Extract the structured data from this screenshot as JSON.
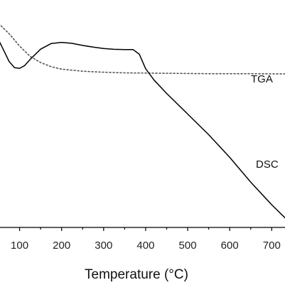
{
  "chart_data": {
    "type": "line",
    "title": "",
    "xlabel": "Temperature (°C)",
    "ylabel": "",
    "xlim": [
      50,
      735
    ],
    "ylim": [
      0,
      100
    ],
    "grid": false,
    "x_ticks": [
      100,
      200,
      300,
      400,
      500,
      600,
      700
    ],
    "x_tick_labels": [
      "100",
      "200",
      "300",
      "400",
      "500",
      "600",
      "700"
    ],
    "series": [
      {
        "name": "TGA",
        "style": "dotted",
        "color": "#555555",
        "x": [
          50,
          75,
          100,
          125,
          150,
          175,
          200,
          250,
          300,
          350,
          400,
          450,
          500,
          550,
          600,
          650,
          700,
          735
        ],
        "y": [
          99,
          94,
          88,
          83,
          80,
          78,
          76.8,
          75.8,
          75.3,
          75.0,
          74.9,
          74.8,
          74.7,
          74.6,
          74.6,
          74.6,
          74.5,
          74.5
        ]
      },
      {
        "name": "DSC",
        "style": "solid",
        "color": "#000000",
        "x": [
          50,
          62,
          75,
          88,
          100,
          112,
          125,
          150,
          175,
          200,
          225,
          250,
          275,
          300,
          325,
          350,
          370,
          385,
          400,
          420,
          450,
          500,
          550,
          600,
          650,
          700,
          735
        ],
        "y": [
          91,
          86,
          80.5,
          77.5,
          77.2,
          78.5,
          81.5,
          86.5,
          89.2,
          89.8,
          89.3,
          88.3,
          87.5,
          86.8,
          86.4,
          86.3,
          86.3,
          84.0,
          77.0,
          71.5,
          65.0,
          55.0,
          45.0,
          34.0,
          22.0,
          11.0,
          4.0
        ]
      }
    ]
  }
}
